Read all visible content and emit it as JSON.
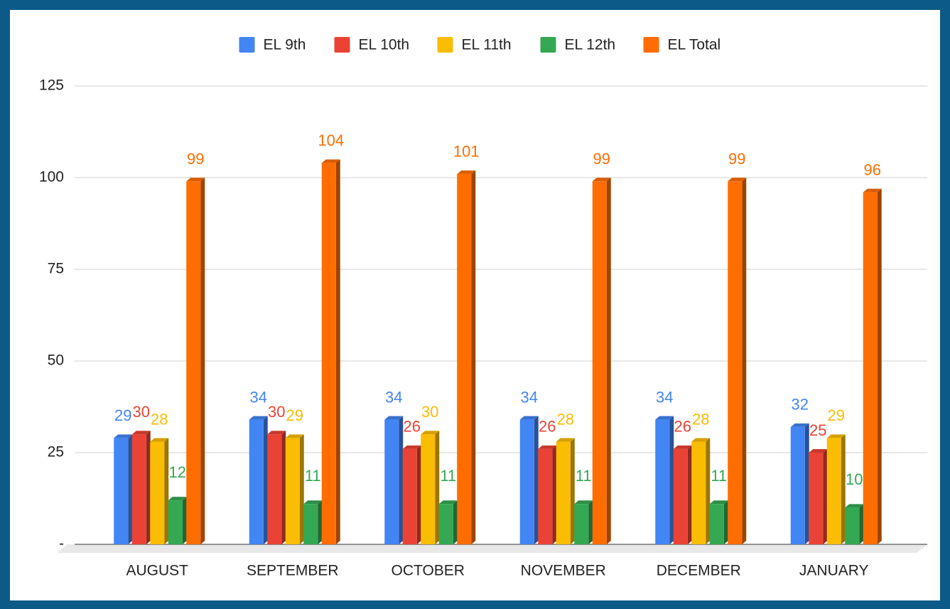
{
  "chart_data": {
    "type": "bar",
    "categories": [
      "AUGUST",
      "SEPTEMBER",
      "OCTOBER",
      "NOVEMBER",
      "DECEMBER",
      "JANUARY"
    ],
    "series": [
      {
        "name": "EL 9th",
        "color": "#4285f4",
        "values": [
          29,
          34,
          34,
          34,
          34,
          32
        ]
      },
      {
        "name": "EL 10th",
        "color": "#ea4335",
        "values": [
          30,
          30,
          26,
          26,
          26,
          25
        ]
      },
      {
        "name": "EL 11th",
        "color": "#fbbc04",
        "values": [
          28,
          29,
          30,
          28,
          28,
          29
        ]
      },
      {
        "name": "EL 12th",
        "color": "#34a853",
        "values": [
          12,
          11,
          11,
          11,
          11,
          10
        ]
      },
      {
        "name": "EL Total",
        "color": "#ff6d01",
        "values": [
          99,
          104,
          101,
          99,
          99,
          96
        ]
      }
    ],
    "ylim": [
      0,
      125
    ],
    "yticks": [
      {
        "value": 0,
        "label": "-"
      },
      25,
      50,
      75,
      100,
      125
    ],
    "grid": true,
    "legend": "top"
  }
}
